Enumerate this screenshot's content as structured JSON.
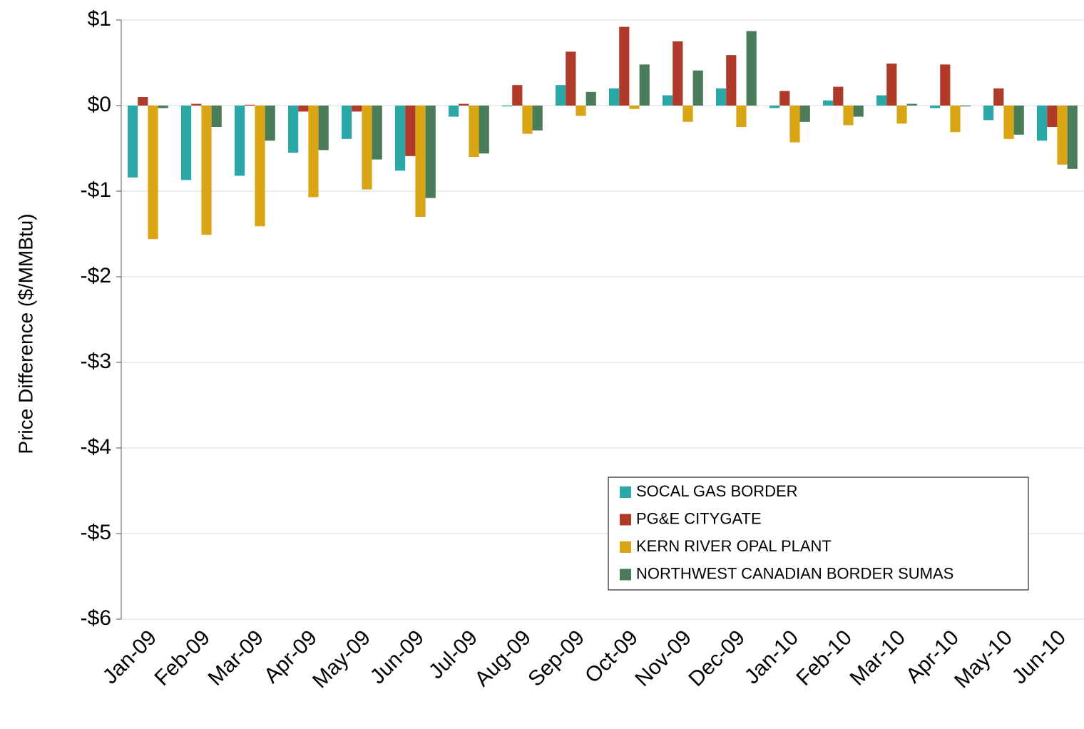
{
  "chart_data": {
    "type": "bar",
    "y_label": "Price Difference  ($/MMBtu)",
    "categories": [
      "Jan-09",
      "Feb-09",
      "Mar-09",
      "Apr-09",
      "May-09",
      "Jun-09",
      "Jul-09",
      "Aug-09",
      "Sep-09",
      "Oct-09",
      "Nov-09",
      "Dec-09",
      "Jan-10",
      "Feb-10",
      "Mar-10",
      "Apr-10",
      "May-10",
      "Jun-10"
    ],
    "series": [
      {
        "name": "SOCAL GAS BORDER",
        "color": "#2aa7a7",
        "values": [
          -0.84,
          -0.87,
          -0.82,
          -0.55,
          -0.39,
          -0.76,
          -0.13,
          -0.01,
          0.24,
          0.2,
          0.12,
          0.2,
          -0.03,
          0.06,
          0.12,
          -0.03,
          -0.17,
          -0.41
        ]
      },
      {
        "name": "PG&E CITYGATE",
        "color": "#b03a2a",
        "values": [
          0.1,
          0.02,
          0.01,
          -0.07,
          -0.07,
          -0.59,
          0.02,
          0.24,
          0.63,
          0.92,
          0.75,
          0.59,
          0.17,
          0.22,
          0.49,
          0.48,
          0.2,
          -0.25
        ]
      },
      {
        "name": "KERN RIVER OPAL PLANT",
        "color": "#d9a514",
        "values": [
          -1.56,
          -1.51,
          -1.41,
          -1.07,
          -0.98,
          -1.3,
          -0.6,
          -0.33,
          -0.12,
          -0.04,
          -0.19,
          -0.25,
          -0.43,
          -0.23,
          -0.21,
          -0.31,
          -0.39,
          -0.69
        ]
      },
      {
        "name": "NORTHWEST CANADIAN BORDER SUMAS",
        "color": "#4a7c59",
        "values": [
          -0.03,
          -0.25,
          -0.41,
          -0.52,
          -0.63,
          -1.08,
          -0.56,
          -0.29,
          0.16,
          0.48,
          0.41,
          0.87,
          -0.19,
          -0.13,
          0.02,
          -0.01,
          -0.34,
          -0.74
        ]
      }
    ],
    "ylim": [
      -6,
      1
    ],
    "yticks": [
      {
        "value": -6,
        "label": "-$6"
      },
      {
        "value": -5,
        "label": "-$5"
      },
      {
        "value": -4,
        "label": "-$4"
      },
      {
        "value": -3,
        "label": "-$3"
      },
      {
        "value": -2,
        "label": "-$2"
      },
      {
        "value": -1,
        "label": "-$1"
      },
      {
        "value": 0,
        "label": "$0"
      },
      {
        "value": 1,
        "label": "$1"
      }
    ],
    "grid": true
  }
}
